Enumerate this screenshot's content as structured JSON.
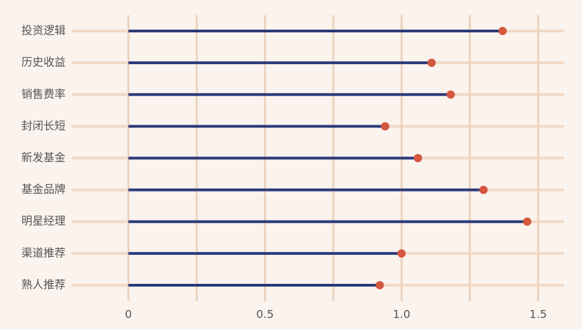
{
  "chart_data": {
    "type": "lollipop",
    "categories": [
      "投资逻辑",
      "历史收益",
      "销售费率",
      "封闭长短",
      "新发基金",
      "基金品牌",
      "明星经理",
      "渠道推荐",
      "熟人推荐"
    ],
    "values": [
      1.37,
      1.11,
      1.18,
      0.94,
      1.06,
      1.3,
      1.46,
      1.0,
      0.92
    ],
    "stem_color": "#2b3a7a",
    "dot_color": "#d4573e",
    "xlim": [
      -0.2,
      1.6
    ],
    "xticks": [
      0,
      0.5,
      {
        "value": 1,
        "label": "1.0"
      },
      1.5
    ],
    "xminor_ticks": [
      0.25,
      0.75,
      1.25
    ],
    "grid": true
  }
}
